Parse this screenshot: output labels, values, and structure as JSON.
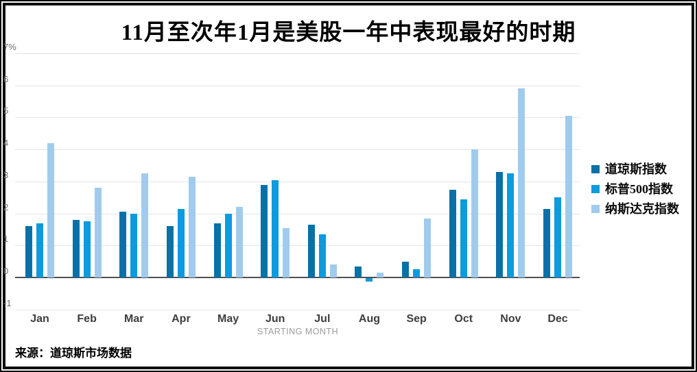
{
  "chart": {
    "title": "11月至次年1月是美股一年中表现最好的时期",
    "xlabel_display": "STARTING MONTH",
    "source": "来源：道琼斯市场数据"
  },
  "chart_data": {
    "type": "bar",
    "title": "11月至次年1月是美股一年中表现最好的时期",
    "categories": [
      "Jan",
      "Feb",
      "Mar",
      "Apr",
      "May",
      "Jun",
      "Jul",
      "Aug",
      "Sep",
      "Oct",
      "Nov",
      "Dec"
    ],
    "series": [
      {
        "name": "道琼斯指数",
        "color": "#0971a6",
        "values": [
          1.6,
          1.8,
          2.05,
          1.6,
          1.7,
          2.9,
          1.65,
          0.35,
          0.5,
          2.75,
          3.3,
          2.15
        ]
      },
      {
        "name": "标普500指数",
        "color": "#0d9ade",
        "values": [
          1.7,
          1.75,
          2.0,
          2.15,
          2.0,
          3.05,
          1.35,
          -0.1,
          0.25,
          2.45,
          3.25,
          2.5
        ]
      },
      {
        "name": "纳斯达克指数",
        "color": "#a0cbed",
        "values": [
          4.2,
          2.8,
          3.25,
          3.15,
          2.2,
          1.55,
          0.4,
          0.15,
          1.85,
          4.0,
          5.9,
          5.05
        ]
      }
    ],
    "xlabel": "STARTING MONTH",
    "ylabel": "",
    "ylim": [
      -1,
      7
    ],
    "yticks": [
      {
        "label": "7%",
        "value": 7
      },
      {
        "label": "6",
        "value": 6
      },
      {
        "label": "5",
        "value": 5
      },
      {
        "label": "4",
        "value": 4
      },
      {
        "label": "3",
        "value": 3
      },
      {
        "label": "2",
        "value": 2
      },
      {
        "label": "1",
        "value": 1
      },
      {
        "label": "0",
        "value": 0
      },
      {
        "label": "-1",
        "value": -1
      }
    ],
    "grid": true,
    "legend_position": "right",
    "unit": "%"
  }
}
